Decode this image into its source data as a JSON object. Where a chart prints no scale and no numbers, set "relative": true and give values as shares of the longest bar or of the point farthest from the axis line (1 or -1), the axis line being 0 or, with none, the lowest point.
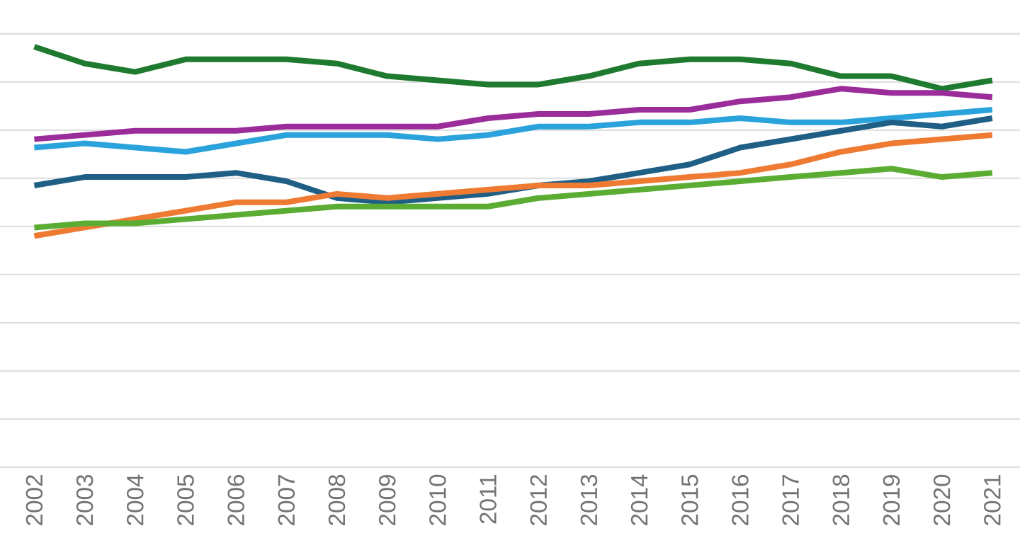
{
  "chart_data": {
    "type": "line",
    "relative": true,
    "grid": "y",
    "marker": "none",
    "line_style": "solid",
    "categories": [
      "2002",
      "2003",
      "2004",
      "2005",
      "2006",
      "2007",
      "2008",
      "2009",
      "2010",
      "2011",
      "2012",
      "2013",
      "2014",
      "2015",
      "2016",
      "2017",
      "2018",
      "2019",
      "2020",
      "2021"
    ],
    "series": [
      {
        "color": "#1e7a2e",
        "values": [
          1.0,
          0.96,
          0.94,
          0.97,
          0.97,
          0.97,
          0.96,
          0.93,
          0.92,
          0.91,
          0.91,
          0.93,
          0.96,
          0.97,
          0.97,
          0.96,
          0.93,
          0.93,
          0.9,
          0.92
        ]
      },
      {
        "color": "#9b2d9b",
        "values": [
          0.78,
          0.79,
          0.8,
          0.8,
          0.8,
          0.81,
          0.81,
          0.81,
          0.81,
          0.83,
          0.84,
          0.84,
          0.85,
          0.85,
          0.87,
          0.88,
          0.9,
          0.89,
          0.89,
          0.88
        ]
      },
      {
        "color": "#2aa3dc",
        "values": [
          0.76,
          0.77,
          0.76,
          0.75,
          0.77,
          0.79,
          0.79,
          0.79,
          0.78,
          0.79,
          0.81,
          0.81,
          0.82,
          0.82,
          0.83,
          0.82,
          0.82,
          0.83,
          0.84,
          0.85
        ]
      },
      {
        "color": "#1f5f86",
        "values": [
          0.67,
          0.69,
          0.69,
          0.69,
          0.7,
          0.68,
          0.64,
          0.63,
          0.64,
          0.65,
          0.67,
          0.68,
          0.7,
          0.72,
          0.76,
          0.78,
          0.8,
          0.82,
          0.81,
          0.83
        ]
      },
      {
        "color": "#ef7a32",
        "values": [
          0.55,
          0.57,
          0.59,
          0.61,
          0.63,
          0.63,
          0.65,
          0.64,
          0.65,
          0.66,
          0.67,
          0.67,
          0.68,
          0.69,
          0.7,
          0.72,
          0.75,
          0.77,
          0.78,
          0.79
        ]
      },
      {
        "color": "#5aad32",
        "values": [
          0.57,
          0.58,
          0.58,
          0.59,
          0.6,
          0.61,
          0.62,
          0.62,
          0.62,
          0.62,
          0.64,
          0.65,
          0.66,
          0.67,
          0.68,
          0.69,
          0.7,
          0.71,
          0.69,
          0.7
        ]
      }
    ]
  }
}
